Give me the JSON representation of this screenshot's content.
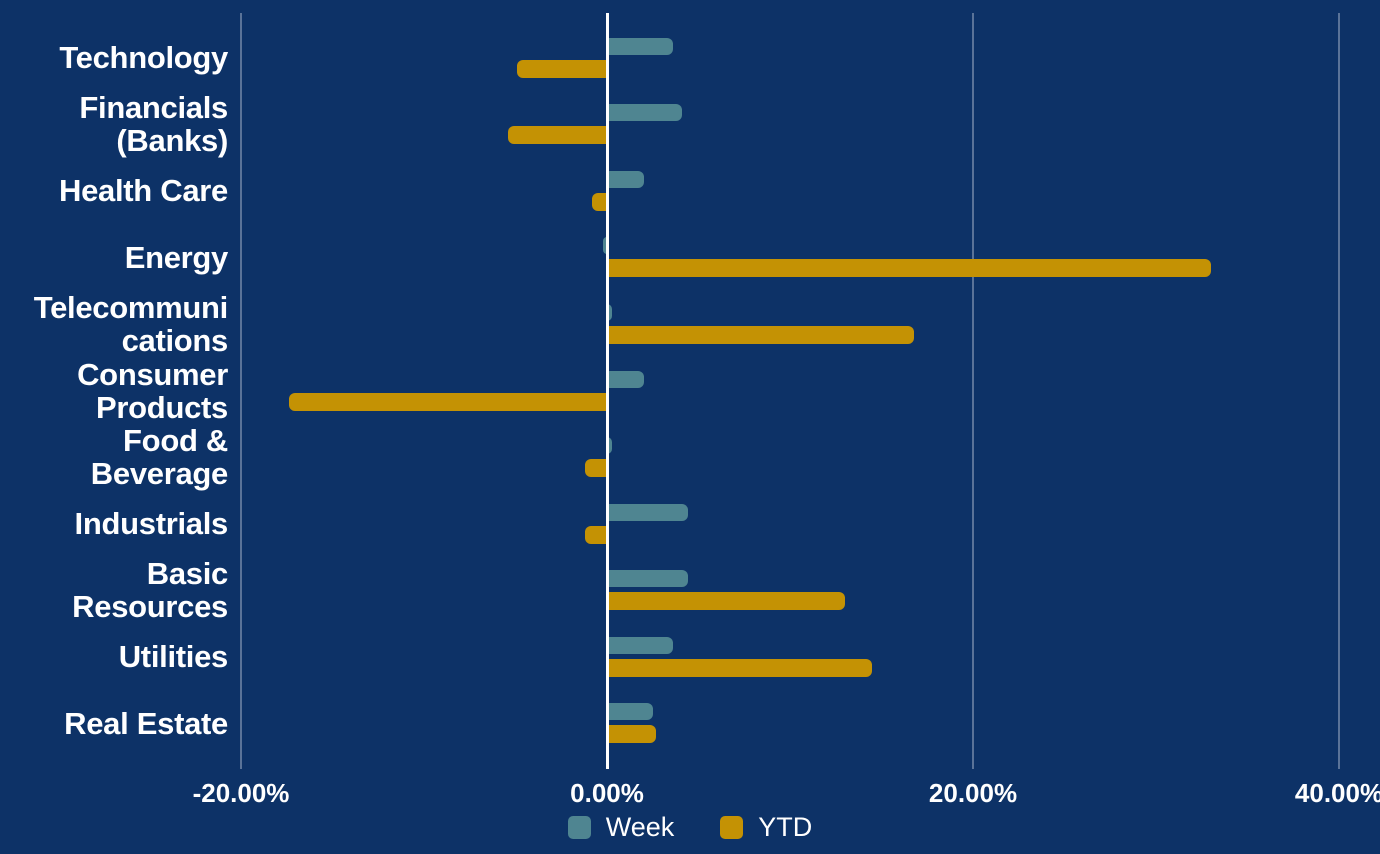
{
  "colors": {
    "background": "#0d3267",
    "grid": "rgba(255,255,255,0.32)",
    "zero_line": "#ffffff",
    "text": "#ffffff",
    "week": "#4f8591",
    "ytd": "#c49204"
  },
  "chart_data": {
    "type": "bar",
    "orientation": "horizontal",
    "title": "",
    "categories": [
      "Technology",
      "Financials\n(Banks)",
      "Health Care",
      "Energy",
      "Telecommuni\ncations",
      "Consumer\nProducts",
      "Food &\nBeverage",
      "Industrials",
      "Basic\nResources",
      "Utilities",
      "Real Estate"
    ],
    "series": [
      {
        "name": "Week",
        "color": "#4f8591",
        "values": [
          3.6,
          4.1,
          2.0,
          -0.2,
          0.3,
          2.0,
          0.3,
          4.4,
          4.4,
          3.6,
          2.5
        ]
      },
      {
        "name": "YTD",
        "color": "#c49204",
        "values": [
          -4.9,
          -5.4,
          -0.8,
          33.0,
          16.8,
          -17.4,
          -1.2,
          -1.2,
          13.0,
          14.5,
          2.7
        ]
      }
    ],
    "x_axis": {
      "unit": "%",
      "min": -20,
      "max": 40,
      "tick_values": [
        -20,
        0,
        20,
        40
      ],
      "ticks": [
        "-20.00%",
        "0.00%",
        "20.00%",
        "40.00%"
      ]
    },
    "grid": true,
    "legend": [
      "Week",
      "YTD"
    ],
    "legend_position": "bottom-center"
  }
}
